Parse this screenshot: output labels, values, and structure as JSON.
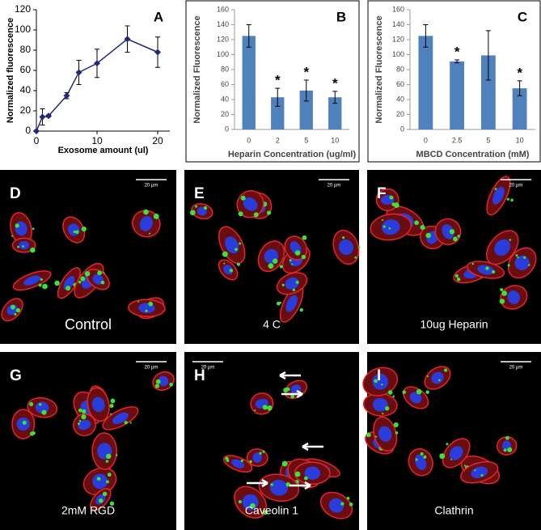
{
  "chart_data": [
    {
      "type": "line",
      "panel_letter": "A",
      "x_label": "Exosome amount (ul)",
      "y_label": "Normalized  fluorescence",
      "x": [
        0,
        1,
        2,
        5,
        7,
        10,
        15,
        20
      ],
      "values": [
        0,
        14,
        15,
        35,
        58,
        67,
        91,
        78
      ],
      "errors": [
        0,
        8,
        1,
        3,
        12,
        14,
        13,
        15
      ],
      "color": "#1f2a7a",
      "xlim": [
        0,
        22
      ],
      "xticks": [
        0,
        10,
        20
      ],
      "ylim": [
        0,
        120
      ],
      "yticks": [
        0,
        20,
        40,
        60,
        80,
        100,
        120
      ]
    },
    {
      "type": "bar",
      "panel_letter": "B",
      "x_label": "Heparin Concentration (ug/ml)",
      "y_label": "Normalized Fluorescence",
      "categories": [
        "0",
        "2",
        "5",
        "10"
      ],
      "values": [
        125,
        43,
        52,
        43
      ],
      "errors": [
        15,
        12,
        14,
        8
      ],
      "significance": [
        null,
        "*",
        "*",
        "*"
      ],
      "color": "#4f81bd",
      "ylim": [
        0,
        160
      ],
      "yticks": [
        0,
        20,
        40,
        60,
        80,
        100,
        120,
        140,
        160
      ]
    },
    {
      "type": "bar",
      "panel_letter": "C",
      "x_label": "MBCD Concentration (mM)",
      "y_label": "Normalized Fluorescence",
      "categories": [
        "0",
        "2.5",
        "5",
        "10"
      ],
      "values": [
        125,
        91,
        99,
        55
      ],
      "errors": [
        15,
        2,
        33,
        10
      ],
      "significance": [
        null,
        "*",
        null,
        "*"
      ],
      "color": "#4f81bd",
      "ylim": [
        0,
        160
      ],
      "yticks": [
        0,
        20,
        40,
        60,
        80,
        100,
        120,
        140,
        160
      ]
    }
  ],
  "panels": [
    {
      "letter": "D",
      "label": "Control",
      "scale": "20 µm"
    },
    {
      "letter": "E",
      "label": "4 C",
      "scale": "20 µm"
    },
    {
      "letter": "F",
      "label": "10ug Heparin",
      "scale": "20 µm"
    },
    {
      "letter": "G",
      "label": "2mM RGD",
      "scale": "20 µm"
    },
    {
      "letter": "H",
      "label": "Caveolin 1",
      "scale": "20 µm"
    },
    {
      "letter": "I",
      "label": "Clathrin",
      "scale": "20 µm"
    }
  ]
}
